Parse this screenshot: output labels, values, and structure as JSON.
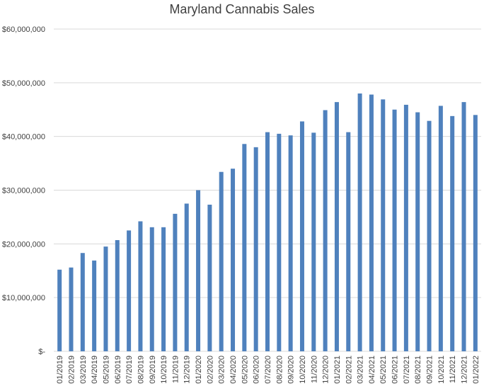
{
  "chart_data": {
    "type": "bar",
    "title": "Maryland Cannabis Sales",
    "xlabel": "",
    "ylabel": "",
    "ylim": [
      0,
      60000000
    ],
    "y_ticks": [
      {
        "value": 0,
        "label": "$-"
      },
      {
        "value": 10000000,
        "label": "$10,000,000"
      },
      {
        "value": 20000000,
        "label": "$20,000,000"
      },
      {
        "value": 30000000,
        "label": "$30,000,000"
      },
      {
        "value": 40000000,
        "label": "$40,000,000"
      },
      {
        "value": 50000000,
        "label": "$50,000,000"
      },
      {
        "value": 60000000,
        "label": "$60,000,000"
      }
    ],
    "grid": true,
    "legend": "none",
    "bar_color": "#4f81bd",
    "categories": [
      "01/2019",
      "02/2019",
      "03/2019",
      "04/2019",
      "05/2019",
      "06/2019",
      "07/2019",
      "08/2019",
      "09/2019",
      "10/2019",
      "11/2019",
      "12/2019",
      "01/2020",
      "02/2020",
      "03/2020",
      "04/2020",
      "05/2020",
      "06/2020",
      "07/2020",
      "08/2020",
      "09/2020",
      "10/2020",
      "11/2020",
      "12/2020",
      "01/2021",
      "02/2021",
      "03/2021",
      "04/2021",
      "05/2021",
      "06/2021",
      "07/2021",
      "08/2021",
      "09/2021",
      "10/2021",
      "11/2021",
      "12/2021",
      "01/2022"
    ],
    "values": [
      15200000,
      15600000,
      18300000,
      16900000,
      19500000,
      20700000,
      22500000,
      24200000,
      23100000,
      23100000,
      25600000,
      27500000,
      30000000,
      27300000,
      33400000,
      34000000,
      38600000,
      38000000,
      40800000,
      40500000,
      40200000,
      42800000,
      40700000,
      44900000,
      46400000,
      40800000,
      48000000,
      47800000,
      46900000,
      45000000,
      45900000,
      44500000,
      42900000,
      45700000,
      43800000,
      46400000,
      44000000
    ]
  }
}
